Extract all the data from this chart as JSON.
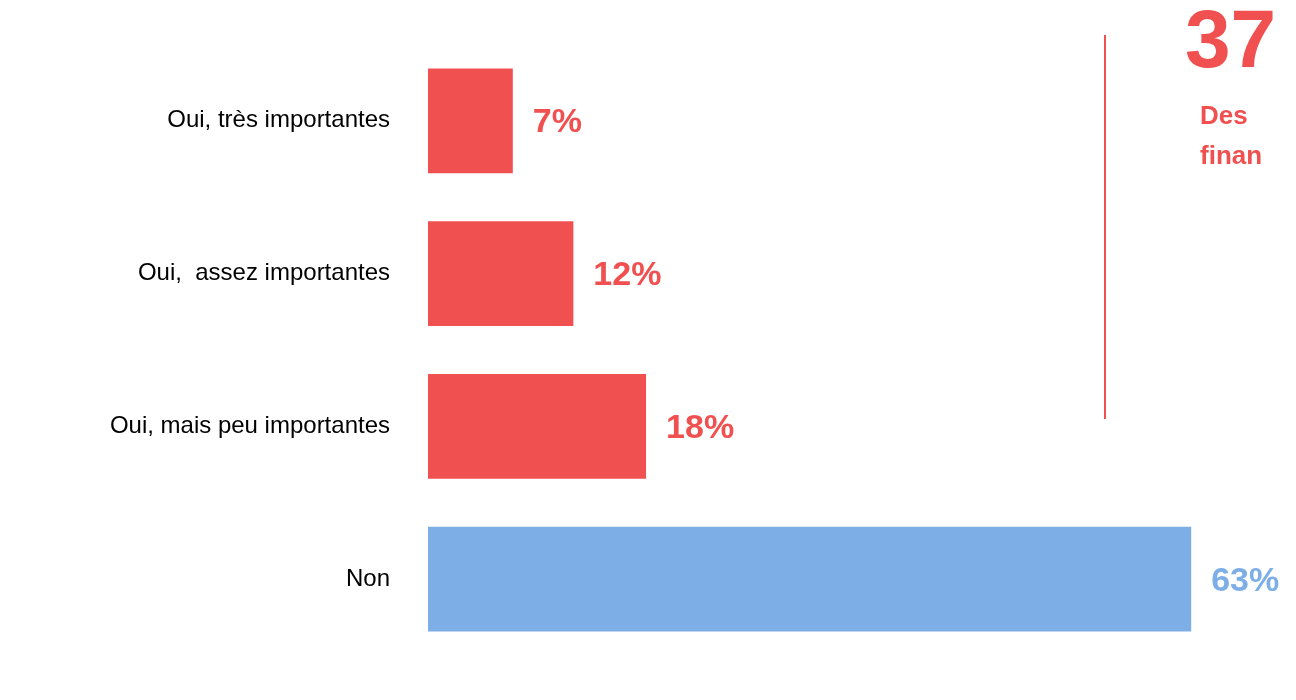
{
  "chart_data": {
    "type": "bar",
    "orientation": "horizontal",
    "categories": [
      "Oui, très importantes",
      "Oui,  assez importantes",
      "Oui, mais peu importantes",
      "Non"
    ],
    "values": [
      7,
      12,
      18,
      63
    ],
    "colors": [
      "#f05050",
      "#f05050",
      "#f05050",
      "#7eaee6"
    ],
    "value_labels": [
      "7%",
      "12%",
      "18%",
      "63%"
    ],
    "grid": false,
    "legend": false,
    "annotations": [
      "37",
      "Des",
      "finan"
    ]
  }
}
